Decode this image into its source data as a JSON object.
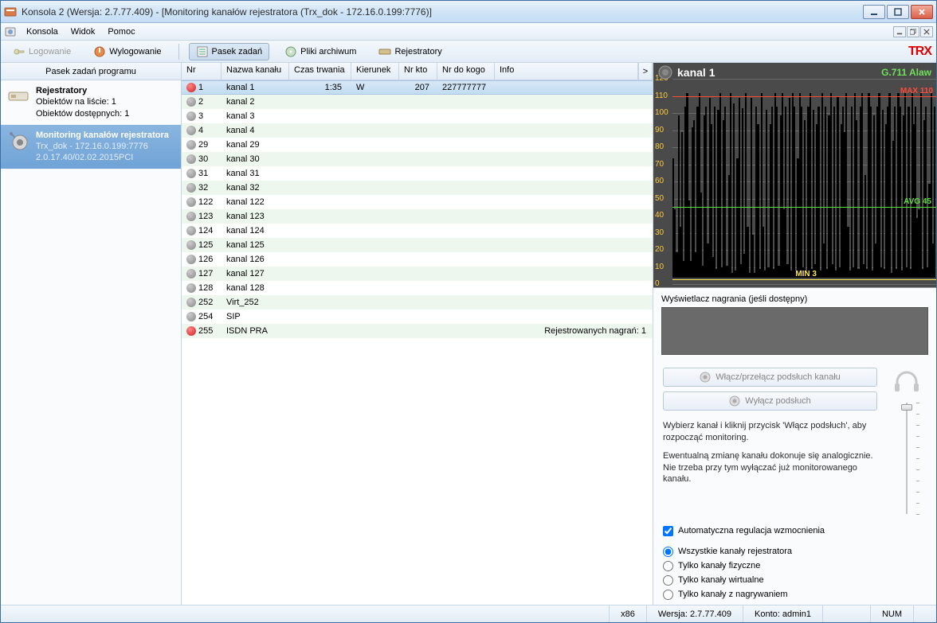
{
  "window": {
    "title": "Konsola 2 (Wersja:  2.7.77.409) - [Monitoring kanałów rejestratora (Trx_dok - 172.16.0.199:7776)]"
  },
  "menu": {
    "items": [
      "Konsola",
      "Widok",
      "Pomoc"
    ]
  },
  "toolbar": {
    "login": "Logowanie",
    "logout": "Wylogowanie",
    "taskbar": "Pasek zadań",
    "archive": "Pliki archiwum",
    "recorders": "Rejestratory",
    "logo": "TRX"
  },
  "sidebar": {
    "header": "Pasek zadań programu",
    "items": [
      {
        "title": "Rejestratory",
        "line2": "Obiektów na liście: 1",
        "line3": "Obiektów dostępnych: 1",
        "selected": false
      },
      {
        "title": "Monitoring kanałów rejestratora",
        "line2": "Trx_dok - 172.16.0.199:7776",
        "line3": "2.0.17.40/02.02.2015PCI",
        "selected": true
      }
    ]
  },
  "grid": {
    "headers": {
      "nr": "Nr",
      "nazwa": "Nazwa kanału",
      "czas": "Czas trwania",
      "kier": "Kierunek",
      "nrkto": "Nr kto",
      "nrdo": "Nr do kogo",
      "info": "Info"
    },
    "rows": [
      {
        "nr": "1",
        "nazwa": "kanal 1",
        "czas": "1:35",
        "kier": "W",
        "nrkto": "207",
        "nrdo": "227777777",
        "info": "",
        "rec": true,
        "sel": true,
        "alt": false
      },
      {
        "nr": "2",
        "nazwa": "kanal 2",
        "czas": "",
        "kier": "",
        "nrkto": "",
        "nrdo": "",
        "info": "",
        "rec": false,
        "sel": false,
        "alt": true
      },
      {
        "nr": "3",
        "nazwa": "kanal 3",
        "czas": "",
        "kier": "",
        "nrkto": "",
        "nrdo": "",
        "info": "",
        "rec": false,
        "sel": false,
        "alt": false
      },
      {
        "nr": "4",
        "nazwa": "kanal 4",
        "czas": "",
        "kier": "",
        "nrkto": "",
        "nrdo": "",
        "info": "",
        "rec": false,
        "sel": false,
        "alt": true
      },
      {
        "nr": "29",
        "nazwa": "kanal 29",
        "czas": "",
        "kier": "",
        "nrkto": "",
        "nrdo": "",
        "info": "",
        "rec": false,
        "sel": false,
        "alt": false
      },
      {
        "nr": "30",
        "nazwa": "kanal 30",
        "czas": "",
        "kier": "",
        "nrkto": "",
        "nrdo": "",
        "info": "",
        "rec": false,
        "sel": false,
        "alt": true
      },
      {
        "nr": "31",
        "nazwa": "kanal 31",
        "czas": "",
        "kier": "",
        "nrkto": "",
        "nrdo": "",
        "info": "",
        "rec": false,
        "sel": false,
        "alt": false
      },
      {
        "nr": "32",
        "nazwa": "kanal 32",
        "czas": "",
        "kier": "",
        "nrkto": "",
        "nrdo": "",
        "info": "",
        "rec": false,
        "sel": false,
        "alt": true
      },
      {
        "nr": "122",
        "nazwa": "kanal 122",
        "czas": "",
        "kier": "",
        "nrkto": "",
        "nrdo": "",
        "info": "",
        "rec": false,
        "sel": false,
        "alt": false
      },
      {
        "nr": "123",
        "nazwa": "kanal 123",
        "czas": "",
        "kier": "",
        "nrkto": "",
        "nrdo": "",
        "info": "",
        "rec": false,
        "sel": false,
        "alt": true
      },
      {
        "nr": "124",
        "nazwa": "kanal 124",
        "czas": "",
        "kier": "",
        "nrkto": "",
        "nrdo": "",
        "info": "",
        "rec": false,
        "sel": false,
        "alt": false
      },
      {
        "nr": "125",
        "nazwa": "kanal 125",
        "czas": "",
        "kier": "",
        "nrkto": "",
        "nrdo": "",
        "info": "",
        "rec": false,
        "sel": false,
        "alt": true
      },
      {
        "nr": "126",
        "nazwa": "kanal 126",
        "czas": "",
        "kier": "",
        "nrkto": "",
        "nrdo": "",
        "info": "",
        "rec": false,
        "sel": false,
        "alt": false
      },
      {
        "nr": "127",
        "nazwa": "kanal 127",
        "czas": "",
        "kier": "",
        "nrkto": "",
        "nrdo": "",
        "info": "",
        "rec": false,
        "sel": false,
        "alt": true
      },
      {
        "nr": "128",
        "nazwa": "kanal 128",
        "czas": "",
        "kier": "",
        "nrkto": "",
        "nrdo": "",
        "info": "",
        "rec": false,
        "sel": false,
        "alt": false
      },
      {
        "nr": "252",
        "nazwa": "Virt_252",
        "czas": "",
        "kier": "",
        "nrkto": "",
        "nrdo": "",
        "info": "",
        "rec": false,
        "sel": false,
        "alt": true
      },
      {
        "nr": "254",
        "nazwa": "SIP",
        "czas": "",
        "kier": "",
        "nrkto": "",
        "nrdo": "",
        "info": "",
        "rec": false,
        "sel": false,
        "alt": false
      },
      {
        "nr": "255",
        "nazwa": "ISDN PRA",
        "czas": "",
        "kier": "",
        "nrkto": "",
        "nrdo": "",
        "info": "Rejestrowanych nagrań: 1",
        "rec": true,
        "sel": false,
        "alt": true
      }
    ]
  },
  "chart": {
    "title": "kanal 1",
    "codec": "G.711 Alaw",
    "background": "#4a4a4a",
    "bar_color": "#000000",
    "grid_color": "#6a6a6a",
    "axis_label_color": "#ffcb3c",
    "max_color": "#ff4a3a",
    "avg_color": "#5dde3f",
    "min_color": "#ffe650",
    "ymin": 0,
    "ymax": 120,
    "ytick_step": 10,
    "max_line": {
      "value": 110,
      "label": "MAX 110"
    },
    "avg_line": {
      "value": 45,
      "label": "AVG 45"
    },
    "min_line": {
      "value": 3,
      "label": "MIN 3"
    },
    "axis_ticks": [
      120,
      110,
      100,
      90,
      80,
      70,
      60,
      50,
      40,
      30,
      20,
      10,
      0
    ],
    "bars": [
      70,
      40,
      15,
      95,
      30,
      85,
      10,
      100,
      108,
      45,
      10,
      88,
      92,
      15,
      100,
      108,
      50,
      7,
      95,
      100,
      20,
      105,
      90,
      12,
      100,
      5,
      98,
      108,
      6,
      92,
      100,
      7,
      60,
      108,
      3,
      102,
      4,
      70,
      105,
      8,
      99,
      14,
      108,
      30,
      3,
      105,
      25,
      3,
      100,
      90,
      5,
      108,
      30,
      4,
      98,
      6,
      90,
      100,
      5,
      108,
      100,
      7,
      95,
      108,
      40,
      100,
      8,
      105,
      4,
      108,
      100,
      4,
      70,
      108,
      100,
      6,
      92,
      4,
      100,
      108,
      5,
      98,
      8,
      90,
      100,
      4,
      108,
      20,
      100,
      5,
      95,
      108,
      8,
      100,
      4,
      106,
      6,
      90,
      100,
      85,
      108,
      30,
      4,
      100,
      6,
      108,
      92,
      5,
      100,
      108,
      8,
      60,
      5,
      108,
      100,
      4,
      95,
      20,
      100,
      108,
      6,
      98,
      5,
      90,
      100,
      108,
      3,
      80,
      100,
      5,
      108,
      100,
      4,
      95,
      108,
      6,
      100,
      5,
      108,
      90,
      100,
      35,
      40,
      108,
      5,
      92,
      100,
      6,
      55,
      108,
      20,
      100
    ]
  },
  "display": {
    "label": "Wyświetlacz nagrania (jeśli dostępny)"
  },
  "controls": {
    "enable": "Włącz/przełącz podsłuch kanału",
    "disable": "Wyłącz podsłuch",
    "help1": "Wybierz kanał i kliknij przycisk 'Włącz podsłuch', aby rozpocząć monitoring.",
    "help2": "Ewentualną zmianę kanału dokonuje się analogicznie. Nie trzeba przy tym wyłączać już monitorowanego kanału.",
    "agc": "Automatyczna regulacja wzmocnienia",
    "radios": [
      "Wszystkie kanały rejestratora",
      "Tylko kanały fizyczne",
      "Tylko kanały wirtualne",
      "Tylko kanały z nagrywaniem"
    ],
    "radio_selected": 0,
    "slider_ticks": 10
  },
  "statusbar": {
    "arch": "x86",
    "version": "Wersja: 2.7.77.409",
    "account": "Konto: admin1",
    "num": "NUM"
  }
}
